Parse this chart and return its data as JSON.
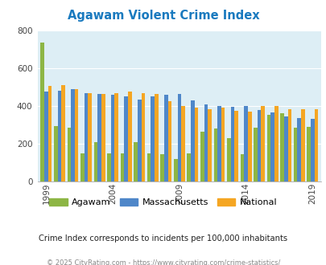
{
  "title": "Agawam Violent Crime Index",
  "title_color": "#1a7abf",
  "years": [
    1999,
    2000,
    2001,
    2002,
    2003,
    2004,
    2005,
    2006,
    2007,
    2008,
    2009,
    2010,
    2011,
    2012,
    2013,
    2014,
    2015,
    2016,
    2017,
    2018,
    2019
  ],
  "agawam": [
    735,
    295,
    285,
    150,
    210,
    150,
    150,
    210,
    150,
    145,
    120,
    150,
    265,
    280,
    230,
    145,
    285,
    355,
    360,
    285,
    290
  ],
  "massachusetts": [
    475,
    480,
    490,
    470,
    465,
    460,
    450,
    435,
    450,
    460,
    465,
    430,
    408,
    400,
    395,
    400,
    380,
    365,
    345,
    335,
    330
  ],
  "national": [
    505,
    510,
    490,
    470,
    465,
    470,
    475,
    470,
    465,
    425,
    400,
    390,
    385,
    390,
    375,
    370,
    400,
    400,
    385,
    385,
    385
  ],
  "xtick_years": [
    1999,
    2004,
    2009,
    2014,
    2019
  ],
  "ylim": [
    0,
    800
  ],
  "yticks": [
    0,
    200,
    400,
    600,
    800
  ],
  "agawam_color": "#8db645",
  "massachusetts_color": "#4f87c9",
  "national_color": "#f5a623",
  "bg_color": "#ddeef5",
  "fig_bg": "#ffffff",
  "subtitle": "Crime Index corresponds to incidents per 100,000 inhabitants",
  "footer": "© 2025 CityRating.com - https://www.cityrating.com/crime-statistics/",
  "bar_width": 0.28,
  "legend_labels": [
    "Agawam",
    "Massachusetts",
    "National"
  ]
}
